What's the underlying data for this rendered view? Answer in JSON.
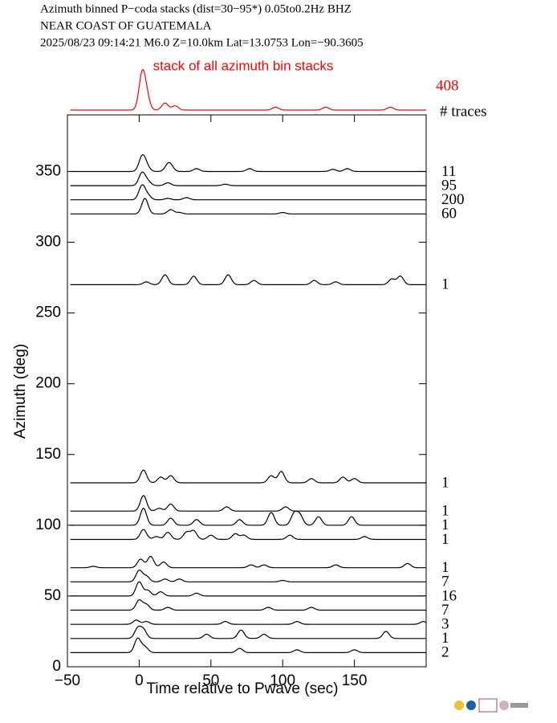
{
  "chart_data": {
    "type": "wiggle",
    "title": [
      "Azimuth binned P−coda stacks (dist=30−95*)  0.05to0.2Hz  BHZ",
      "NEAR COAST OF GUATEMALA",
      "2025/08/23  09:14:21  M6.0  Z=10.0km Lat=13.0753 Lon=−90.3605"
    ],
    "xlabel": "Time relative to Pwave (sec)",
    "ylabel": "Azimuth (deg)",
    "xlim": [
      -50,
      200
    ],
    "ylim": [
      0,
      390
    ],
    "xticks": [
      {
        "value": -50,
        "label": "−50"
      },
      0,
      50,
      100,
      150
    ],
    "yticks": [
      0,
      50,
      100,
      150,
      200,
      250,
      300,
      350
    ],
    "color": "#000000",
    "stack": {
      "label": "stack of all azimuth bin stacks",
      "traces": 408,
      "traces_label": "# traces",
      "color": "#ff0000",
      "peaks": [
        [
          2,
          24
        ],
        [
          5,
          10
        ],
        [
          18,
          5
        ],
        [
          25,
          3
        ],
        [
          95,
          2
        ],
        [
          130,
          2
        ],
        [
          175,
          2
        ]
      ]
    },
    "series": [
      {
        "azimuth": 350,
        "traces": 11,
        "peaks": [
          [
            2,
            10
          ],
          [
            5,
            4
          ],
          [
            20,
            4
          ],
          [
            22,
            3
          ],
          [
            40,
            2
          ],
          [
            77,
            2
          ],
          [
            135,
            1.5
          ],
          [
            145,
            2
          ]
        ]
      },
      {
        "azimuth": 340,
        "traces": 95,
        "peaks": [
          [
            2,
            9
          ],
          [
            6,
            3
          ],
          [
            20,
            2
          ],
          [
            60,
            1
          ]
        ]
      },
      {
        "azimuth": 330,
        "traces": 200,
        "peaks": [
          [
            2,
            10
          ],
          [
            6,
            3
          ],
          [
            20,
            1
          ],
          [
            33,
            1.5
          ]
        ]
      },
      {
        "azimuth": 320,
        "traces": 60,
        "peaks": [
          [
            4,
            11
          ],
          [
            22,
            3
          ],
          [
            28,
            1
          ],
          [
            100,
            1
          ]
        ]
      },
      {
        "azimuth": 270,
        "traces": 1,
        "peaks": [
          [
            5,
            2
          ],
          [
            18,
            7
          ],
          [
            38,
            6
          ],
          [
            62,
            7
          ],
          [
            80,
            3
          ],
          [
            122,
            3
          ],
          [
            137,
            2
          ],
          [
            176,
            4
          ],
          [
            182,
            6
          ]
        ]
      },
      {
        "azimuth": 130,
        "traces": 1,
        "peaks": [
          [
            3,
            9
          ],
          [
            15,
            4
          ],
          [
            22,
            5
          ],
          [
            92,
            5
          ],
          [
            99,
            8
          ],
          [
            120,
            3
          ],
          [
            142,
            4
          ],
          [
            150,
            3
          ]
        ]
      },
      {
        "azimuth": 110,
        "traces": 1,
        "peaks": [
          [
            3,
            11
          ],
          [
            14,
            2
          ],
          [
            22,
            5
          ],
          [
            61,
            3
          ],
          [
            102,
            3
          ]
        ]
      },
      {
        "azimuth": 100,
        "traces": 1,
        "peaks": [
          [
            3,
            12
          ],
          [
            22,
            5
          ],
          [
            40,
            4
          ],
          [
            70,
            4
          ],
          [
            92,
            9
          ],
          [
            108,
            8
          ],
          [
            112,
            7
          ],
          [
            125,
            6
          ],
          [
            148,
            6
          ]
        ]
      },
      {
        "azimuth": 90,
        "traces": 1,
        "peaks": [
          [
            3,
            7
          ],
          [
            12,
            2
          ],
          [
            20,
            5
          ],
          [
            33,
            5
          ],
          [
            38,
            6
          ],
          [
            50,
            3
          ],
          [
            67,
            4
          ],
          [
            73,
            3
          ],
          [
            105,
            3
          ],
          [
            157,
            2
          ]
        ]
      },
      {
        "azimuth": 70,
        "traces": 1,
        "peaks": [
          [
            -32,
            1
          ],
          [
            1,
            6
          ],
          [
            8,
            8
          ],
          [
            17,
            4
          ],
          [
            78,
            2
          ],
          [
            87,
            2
          ],
          [
            137,
            2
          ],
          [
            187,
            3
          ]
        ]
      },
      {
        "azimuth": 60,
        "traces": 7,
        "peaks": [
          [
            0,
            8
          ],
          [
            5,
            4
          ],
          [
            18,
            2
          ],
          [
            28,
            2
          ],
          [
            100,
            1
          ]
        ]
      },
      {
        "azimuth": 50,
        "traces": 16,
        "peaks": [
          [
            0,
            10
          ],
          [
            6,
            4
          ],
          [
            15,
            3
          ],
          [
            40,
            2
          ]
        ]
      },
      {
        "azimuth": 40,
        "traces": 7,
        "peaks": [
          [
            0,
            7
          ],
          [
            5,
            4
          ],
          [
            20,
            2
          ],
          [
            90,
            2
          ],
          [
            120,
            2
          ]
        ]
      },
      {
        "azimuth": 30,
        "traces": 3,
        "peaks": [
          [
            -2,
            3
          ],
          [
            5,
            2
          ],
          [
            60,
            2
          ],
          [
            110,
            2
          ],
          [
            198,
            2
          ]
        ]
      },
      {
        "azimuth": 20,
        "traces": 1,
        "peaks": [
          [
            -1,
            7
          ],
          [
            3,
            6
          ],
          [
            47,
            3
          ],
          [
            71,
            6
          ],
          [
            87,
            3
          ],
          [
            172,
            5
          ]
        ]
      },
      {
        "azimuth": 10,
        "traces": 2,
        "peaks": [
          [
            -1,
            10
          ],
          [
            4,
            4
          ],
          [
            70,
            3
          ],
          [
            110,
            2
          ],
          [
            150,
            2
          ]
        ]
      }
    ]
  }
}
